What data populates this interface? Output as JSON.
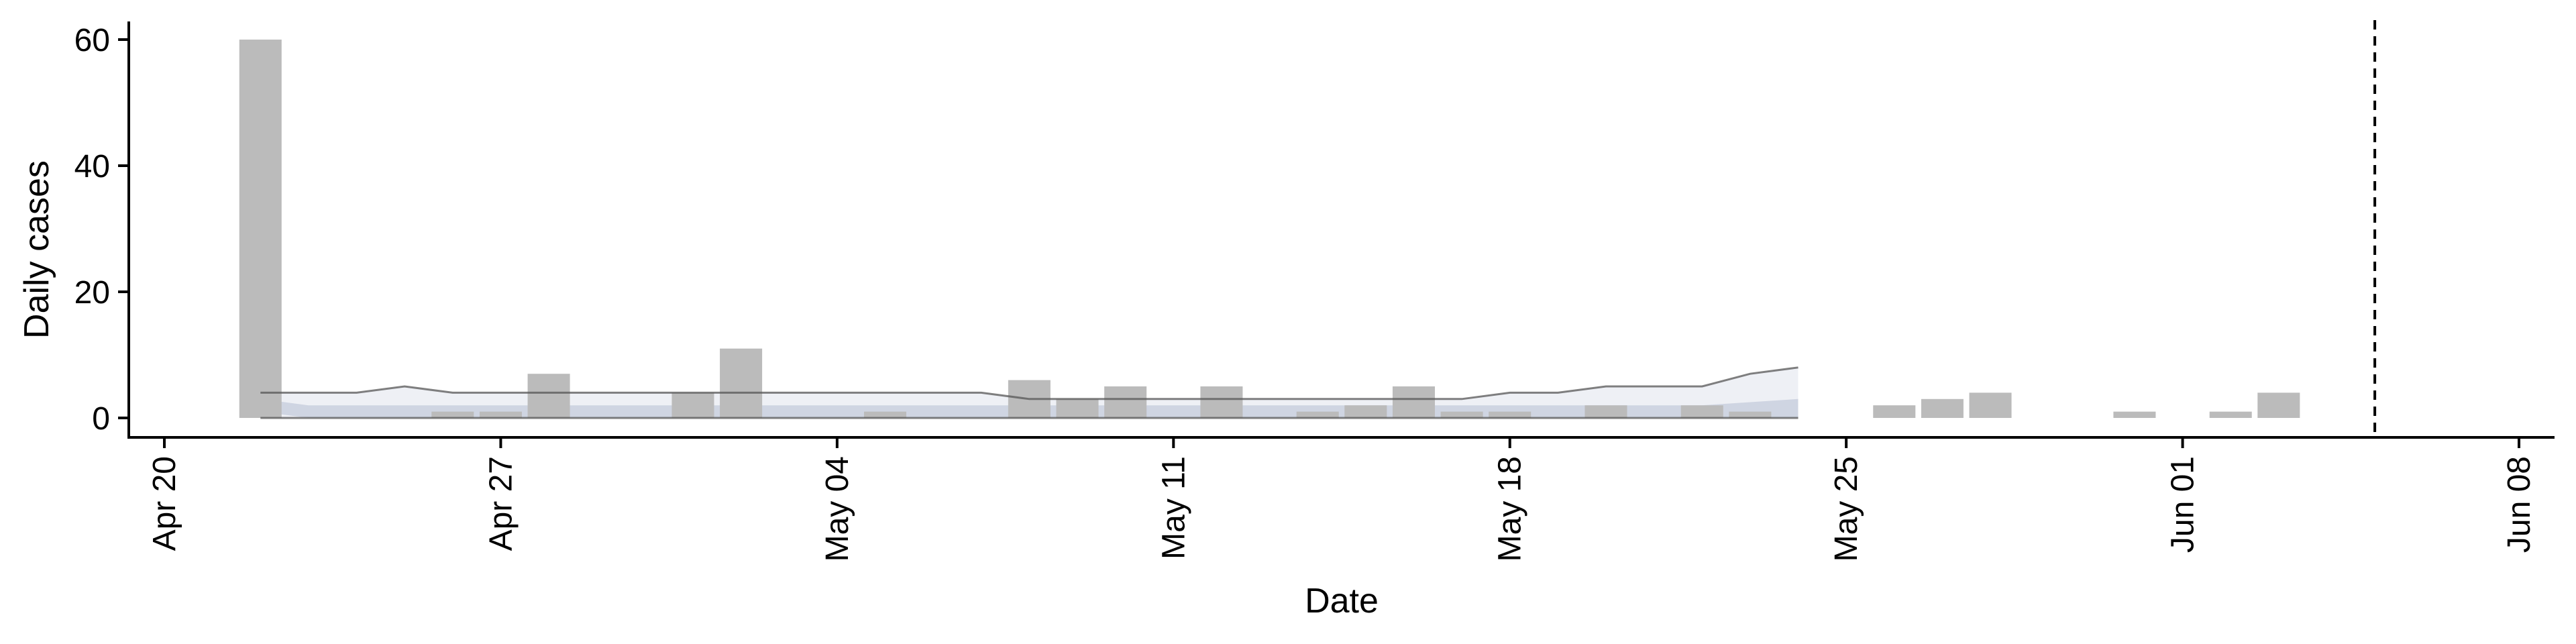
{
  "chart_data": {
    "type": "bar",
    "xlabel": "Date",
    "ylabel": "Daily cases",
    "x_ticks": [
      "Apr 20",
      "Apr 27",
      "May 04",
      "May 11",
      "May 18",
      "May 25",
      "Jun 01",
      "Jun 08"
    ],
    "x_tick_dates": [
      "2020-04-20",
      "2020-04-27",
      "2020-05-04",
      "2020-05-11",
      "2020-05-18",
      "2020-05-25",
      "2020-06-01",
      "2020-06-08"
    ],
    "xlim": [
      "2020-04-20",
      "2020-06-08"
    ],
    "y_ticks": [
      0,
      20,
      40,
      60
    ],
    "ylim": [
      0,
      60
    ],
    "grid": false,
    "bars": {
      "dates": [
        "2020-04-22",
        "2020-04-26",
        "2020-04-27",
        "2020-04-28",
        "2020-05-01",
        "2020-05-02",
        "2020-05-05",
        "2020-05-08",
        "2020-05-09",
        "2020-05-10",
        "2020-05-12",
        "2020-05-14",
        "2020-05-15",
        "2020-05-16",
        "2020-05-17",
        "2020-05-18",
        "2020-05-20",
        "2020-05-22",
        "2020-05-23",
        "2020-05-26",
        "2020-05-27",
        "2020-05-28",
        "2020-05-31",
        "2020-06-02",
        "2020-06-03"
      ],
      "values": [
        60,
        1,
        1,
        7,
        4,
        11,
        1,
        6,
        3,
        5,
        5,
        1,
        2,
        5,
        1,
        1,
        2,
        2,
        1,
        2,
        3,
        4,
        1,
        1,
        4
      ],
      "color": "#bbbbbb"
    },
    "nowcast": {
      "dates": [
        "2020-04-22",
        "2020-04-23",
        "2020-04-24",
        "2020-04-25",
        "2020-04-26",
        "2020-04-27",
        "2020-04-28",
        "2020-04-29",
        "2020-04-30",
        "2020-05-01",
        "2020-05-02",
        "2020-05-03",
        "2020-05-04",
        "2020-05-05",
        "2020-05-06",
        "2020-05-07",
        "2020-05-08",
        "2020-05-09",
        "2020-05-10",
        "2020-05-11",
        "2020-05-12",
        "2020-05-13",
        "2020-05-14",
        "2020-05-15",
        "2020-05-16",
        "2020-05-17",
        "2020-05-18",
        "2020-05-19",
        "2020-05-20",
        "2020-05-21",
        "2020-05-22",
        "2020-05-23",
        "2020-05-24"
      ],
      "median": [
        2,
        1,
        1,
        1,
        1,
        1,
        1,
        1,
        1,
        1,
        1,
        1,
        1,
        1,
        1,
        1,
        1,
        1,
        1,
        1,
        1,
        1,
        1,
        1,
        1,
        1,
        1,
        1,
        1,
        1,
        1,
        1.5,
        2
      ],
      "inner_lower": [
        1,
        0,
        0,
        0,
        0,
        0,
        0,
        0,
        0,
        0,
        0,
        0,
        0,
        0,
        0,
        0,
        0,
        0,
        0,
        0,
        0,
        0,
        0,
        0,
        0,
        0,
        0,
        0,
        0,
        0,
        0,
        0,
        0
      ],
      "inner_upper": [
        3,
        2,
        2,
        2,
        2,
        2,
        2,
        2,
        2,
        2,
        2,
        2,
        2,
        2,
        2,
        2,
        2,
        2,
        2,
        2,
        2,
        2,
        2,
        2,
        2,
        2,
        2,
        2,
        2,
        2,
        2,
        2.5,
        3
      ],
      "outer_lower": [
        0,
        0,
        0,
        0,
        0,
        0,
        0,
        0,
        0,
        0,
        0,
        0,
        0,
        0,
        0,
        0,
        0,
        0,
        0,
        0,
        0,
        0,
        0,
        0,
        0,
        0,
        0,
        0,
        0,
        0,
        0,
        0,
        0
      ],
      "outer_upper": [
        4,
        4,
        4,
        5,
        4,
        4,
        4,
        4,
        4,
        4,
        4,
        4,
        4,
        4,
        4,
        4,
        3,
        3,
        3,
        3,
        3,
        3,
        3,
        3,
        3,
        3,
        4,
        4,
        5,
        5,
        5,
        7,
        8
      ],
      "color": "#8f9bbc"
    },
    "vline": {
      "date": "2020-06-05",
      "style": "dashed"
    }
  }
}
